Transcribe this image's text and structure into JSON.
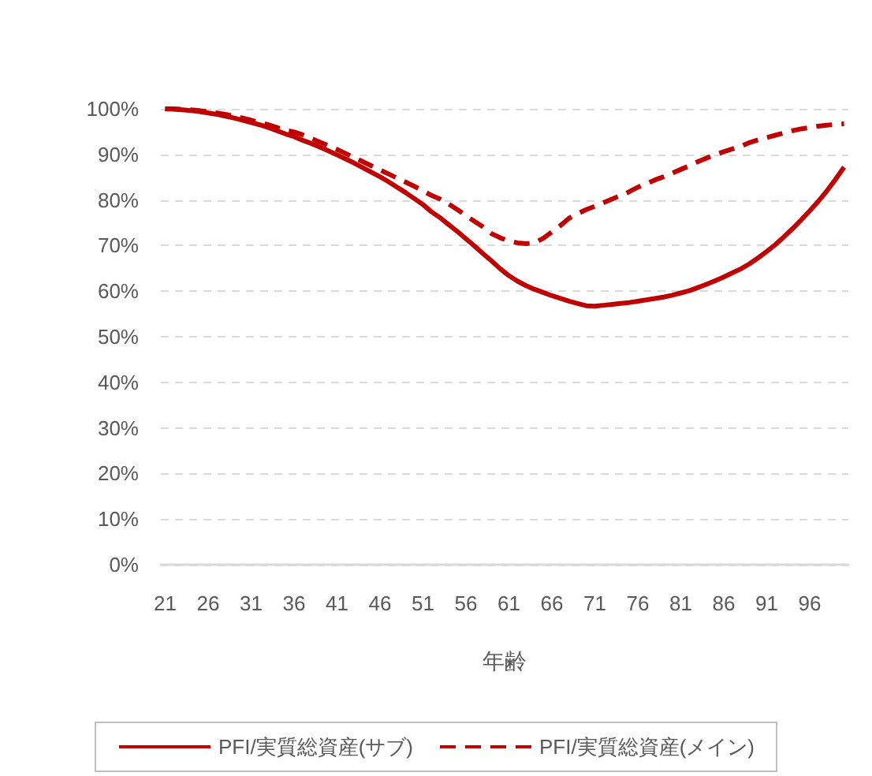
{
  "chart_data": {
    "type": "line",
    "xlabel": "年齢",
    "categories": [
      "21",
      null,
      null,
      null,
      null,
      "26",
      null,
      null,
      null,
      null,
      "31",
      null,
      null,
      null,
      null,
      "36",
      null,
      null,
      null,
      null,
      "41",
      null,
      null,
      null,
      null,
      "46",
      null,
      null,
      null,
      null,
      "51",
      null,
      null,
      null,
      null,
      "56",
      null,
      null,
      null,
      null,
      "61",
      null,
      null,
      null,
      null,
      "66",
      null,
      null,
      null,
      null,
      "71",
      null,
      null,
      null,
      null,
      "76",
      null,
      null,
      null,
      null,
      "81",
      null,
      null,
      null,
      null,
      "86",
      null,
      null,
      null,
      null,
      "91",
      null,
      null,
      null,
      null,
      "96",
      null,
      null,
      null,
      null
    ],
    "series": [
      {
        "name": "PFI/実質総資産(サブ)",
        "color": "#c00000",
        "line_style": "solid",
        "values": [
          100,
          99.9,
          99.8,
          99.6,
          99.4,
          99.1,
          98.8,
          98.4,
          98.0,
          97.5,
          97.0,
          96.5,
          95.9,
          95.2,
          94.5,
          93.9,
          93.1,
          92.4,
          91.6,
          90.8,
          89.9,
          89.0,
          88.1,
          87.1,
          86.1,
          85.1,
          84.0,
          82.8,
          81.6,
          80.3,
          79.0,
          77.4,
          76.1,
          74.6,
          73.1,
          71.5,
          69.9,
          68.2,
          66.6,
          64.9,
          63.4,
          62.2,
          61.2,
          60.4,
          59.7,
          59.0,
          58.4,
          57.8,
          57.3,
          56.8,
          56.7,
          56.9,
          57.1,
          57.3,
          57.5,
          57.8,
          58.1,
          58.4,
          58.7,
          59.1,
          59.6,
          60.1,
          60.8,
          61.5,
          62.3,
          63.1,
          64.0,
          64.9,
          66.0,
          67.3,
          68.7,
          70.2,
          71.9,
          73.7,
          75.6,
          77.6,
          79.7,
          82.0,
          84.5,
          87.2
        ]
      },
      {
        "name": "PFI/実質総資産(メイン)",
        "color": "#c00000",
        "line_style": "dashed",
        "values": [
          100,
          100,
          99.9,
          99.8,
          99.6,
          99.4,
          99.1,
          98.8,
          98.4,
          98.0,
          97.5,
          97.0,
          96.5,
          95.9,
          95.3,
          94.9,
          94.3,
          93.5,
          92.7,
          91.9,
          91.1,
          90.2,
          89.3,
          88.4,
          87.5,
          86.6,
          85.7,
          84.8,
          83.9,
          83.0,
          82.0,
          81.0,
          80.2,
          79.1,
          77.9,
          76.6,
          75.3,
          74.1,
          72.6,
          71.7,
          71.0,
          70.6,
          70.4,
          70.6,
          71.6,
          73.0,
          74.4,
          76.0,
          77.0,
          77.9,
          78.6,
          79.4,
          80.2,
          81.0,
          81.8,
          82.8,
          83.6,
          84.4,
          85.1,
          85.9,
          86.7,
          87.5,
          88.4,
          89.2,
          89.9,
          90.6,
          91.2,
          91.8,
          92.6,
          93.2,
          93.7,
          94.2,
          94.7,
          95.2,
          95.6,
          95.9,
          96.2,
          96.4,
          96.6,
          96.7
        ]
      }
    ],
    "ylim": [
      0,
      100
    ],
    "yticks": [
      {
        "value": 0,
        "label": "0%"
      },
      {
        "value": 10,
        "label": "10%"
      },
      {
        "value": 20,
        "label": "20%"
      },
      {
        "value": 30,
        "label": "30%"
      },
      {
        "value": 40,
        "label": "40%"
      },
      {
        "value": 50,
        "label": "50%"
      },
      {
        "value": 60,
        "label": "60%"
      },
      {
        "value": 70,
        "label": "70%"
      },
      {
        "value": 80,
        "label": "80%"
      },
      {
        "value": 90,
        "label": "90%"
      },
      {
        "value": 100,
        "label": "100%"
      }
    ],
    "grid": "y",
    "legend": "bottom"
  }
}
